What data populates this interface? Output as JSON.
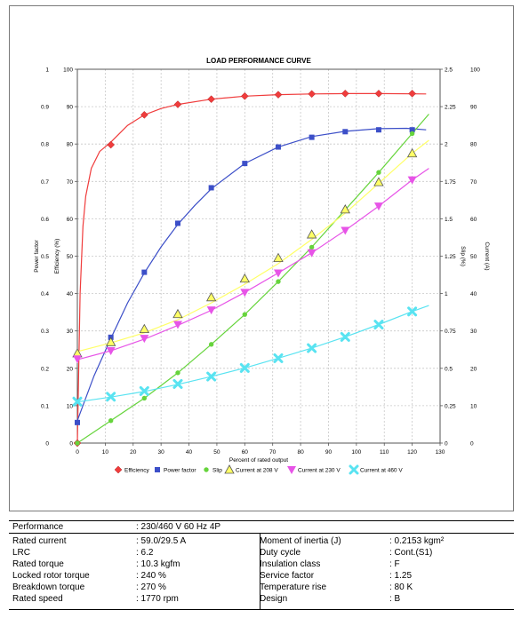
{
  "chart_data": {
    "type": "line",
    "title": "LOAD PERFORMANCE CURVE",
    "xlabel": "Percent of rated output",
    "xlim": [
      0,
      130
    ],
    "x_ticks": [
      "0",
      "10",
      "20",
      "30",
      "40",
      "50",
      "60",
      "70",
      "80",
      "90",
      "100",
      "110",
      "120",
      "130"
    ],
    "axes": {
      "power_factor": {
        "label": "Power factor",
        "range": [
          0,
          1
        ],
        "ticks": [
          "0",
          "0.1",
          "0.2",
          "0.3",
          "0.4",
          "0.5",
          "0.6",
          "0.7",
          "0.8",
          "0.9",
          "1"
        ]
      },
      "efficiency": {
        "label": "Efficiency (%)",
        "range": [
          0,
          100
        ],
        "ticks": [
          "0",
          "10",
          "20",
          "30",
          "40",
          "50",
          "60",
          "70",
          "80",
          "90",
          "100"
        ]
      },
      "slip": {
        "label": "Slip (%)",
        "range": [
          0,
          2.5
        ],
        "ticks": [
          "0",
          "0.25",
          "0.5",
          "0.75",
          "1",
          "1.25",
          "1.5",
          "1.75",
          "2",
          "2.25",
          "2.5"
        ]
      },
      "current": {
        "label": "Current (A)",
        "range": [
          0,
          100
        ],
        "ticks": [
          "0",
          "10",
          "20",
          "30",
          "40",
          "50",
          "60",
          "70",
          "80",
          "90",
          "100"
        ]
      }
    },
    "grid": true,
    "legend_position": "bottom",
    "series": [
      {
        "name": "Efficiency",
        "axis": "efficiency",
        "color": "#f03c3c",
        "marker": "diamond",
        "x": [
          0,
          12,
          24,
          36,
          48,
          60,
          72,
          84,
          96,
          108,
          120
        ],
        "y": [
          0,
          79.8,
          87.8,
          90.6,
          92.0,
          92.8,
          93.2,
          93.4,
          93.5,
          93.5,
          93.5
        ],
        "curve": [
          [
            0,
            0
          ],
          [
            1,
            40
          ],
          [
            2,
            58
          ],
          [
            3,
            66
          ],
          [
            5,
            73.5
          ],
          [
            8,
            78
          ],
          [
            12,
            80.5
          ],
          [
            18,
            85
          ],
          [
            24,
            87.8
          ],
          [
            30,
            89.5
          ],
          [
            36,
            90.6
          ],
          [
            48,
            92
          ],
          [
            60,
            92.8
          ],
          [
            72,
            93.2
          ],
          [
            84,
            93.4
          ],
          [
            96,
            93.5
          ],
          [
            108,
            93.5
          ],
          [
            125,
            93.4
          ]
        ]
      },
      {
        "name": "Power factor",
        "axis": "power_factor",
        "color": "#3c4fc8",
        "marker": "square",
        "x": [
          0,
          12,
          24,
          36,
          48,
          60,
          72,
          84,
          96,
          108,
          120
        ],
        "y": [
          0.055,
          0.283,
          0.457,
          0.588,
          0.683,
          0.748,
          0.792,
          0.818,
          0.833,
          0.838,
          0.838
        ],
        "curve": [
          [
            0,
            0.06
          ],
          [
            6,
            0.18
          ],
          [
            12,
            0.28
          ],
          [
            18,
            0.375
          ],
          [
            24,
            0.455
          ],
          [
            30,
            0.525
          ],
          [
            36,
            0.585
          ],
          [
            42,
            0.635
          ],
          [
            48,
            0.68
          ],
          [
            60,
            0.748
          ],
          [
            72,
            0.792
          ],
          [
            84,
            0.82
          ],
          [
            96,
            0.834
          ],
          [
            108,
            0.841
          ],
          [
            118,
            0.842
          ],
          [
            125,
            0.838
          ]
        ]
      },
      {
        "name": "Slip",
        "axis": "slip",
        "color": "#66d43c",
        "marker": "circle",
        "x": [
          0,
          12,
          24,
          36,
          48,
          60,
          72,
          84,
          96,
          108,
          120
        ],
        "y": [
          0,
          0.15,
          0.3,
          0.47,
          0.66,
          0.86,
          1.08,
          1.31,
          1.56,
          1.81,
          2.07
        ],
        "curve": [
          [
            0,
            0
          ],
          [
            12,
            0.15
          ],
          [
            24,
            0.3
          ],
          [
            36,
            0.47
          ],
          [
            48,
            0.66
          ],
          [
            60,
            0.86
          ],
          [
            72,
            1.08
          ],
          [
            84,
            1.31
          ],
          [
            96,
            1.56
          ],
          [
            108,
            1.81
          ],
          [
            120,
            2.07
          ],
          [
            126,
            2.2
          ]
        ]
      },
      {
        "name": "Current at 208 V",
        "axis": "current",
        "color": "#ffff66",
        "marker": "triangle",
        "x": [
          0,
          12,
          24,
          36,
          48,
          60,
          72,
          84,
          96,
          108,
          120
        ],
        "y": [
          24.0,
          27.0,
          30.5,
          34.5,
          39.0,
          44.0,
          49.5,
          55.8,
          62.5,
          69.8,
          77.5
        ],
        "curve": [
          [
            0,
            24.5
          ],
          [
            12,
            26.8
          ],
          [
            24,
            29.5
          ],
          [
            36,
            33
          ],
          [
            48,
            37.5
          ],
          [
            60,
            42.5
          ],
          [
            72,
            48
          ],
          [
            84,
            54.5
          ],
          [
            96,
            61.5
          ],
          [
            108,
            69.5
          ],
          [
            120,
            77.5
          ],
          [
            126,
            81
          ]
        ]
      },
      {
        "name": "Current at 230 V",
        "axis": "current",
        "color": "#e754e7",
        "marker": "triangle-down",
        "x": [
          0,
          12,
          24,
          36,
          48,
          60,
          72,
          84,
          96,
          108,
          120
        ],
        "y": [
          22.5,
          24.7,
          28.0,
          31.7,
          35.6,
          40.3,
          45.5,
          50.9,
          56.9,
          63.4,
          70.4
        ],
        "curve": [
          [
            0,
            22.3
          ],
          [
            12,
            24.7
          ],
          [
            24,
            27.8
          ],
          [
            36,
            31.5
          ],
          [
            48,
            35.5
          ],
          [
            60,
            40.3
          ],
          [
            72,
            45.5
          ],
          [
            84,
            50.9
          ],
          [
            96,
            56.9
          ],
          [
            108,
            63.4
          ],
          [
            120,
            70.4
          ],
          [
            126,
            73.5
          ]
        ]
      },
      {
        "name": "Current at 460 V",
        "axis": "current",
        "color": "#59e3f1",
        "marker": "x",
        "x": [
          0,
          12,
          24,
          36,
          48,
          60,
          72,
          84,
          96,
          108,
          120
        ],
        "y": [
          11.1,
          12.4,
          13.9,
          15.8,
          17.8,
          20.1,
          22.7,
          25.4,
          28.4,
          31.7,
          35.2
        ],
        "curve": [
          [
            0,
            11
          ],
          [
            12,
            12.3
          ],
          [
            24,
            13.8
          ],
          [
            36,
            15.7
          ],
          [
            48,
            17.8
          ],
          [
            60,
            20.1
          ],
          [
            72,
            22.7
          ],
          [
            84,
            25.4
          ],
          [
            96,
            28.4
          ],
          [
            108,
            31.7
          ],
          [
            120,
            35.2
          ],
          [
            126,
            36.8
          ]
        ]
      }
    ]
  },
  "performance": {
    "label": "Performance",
    "value": ": 230/460 V 60 Hz 4P"
  },
  "specs_left": [
    {
      "label": "Rated current",
      "value": ": 59.0/29.5 A"
    },
    {
      "label": "LRC",
      "value": ": 6.2"
    },
    {
      "label": "Rated torque",
      "value": ": 10.3 kgfm"
    },
    {
      "label": "Locked rotor torque",
      "value": ": 240 %"
    },
    {
      "label": "Breakdown torque",
      "value": ": 270 %"
    },
    {
      "label": "Rated speed",
      "value": ": 1770 rpm"
    }
  ],
  "specs_right": [
    {
      "label": "Moment of inertia (J)",
      "value": ": 0.2153 kgm²"
    },
    {
      "label": "Duty cycle",
      "value": ": Cont.(S1)"
    },
    {
      "label": "Insulation class",
      "value": ": F"
    },
    {
      "label": "Service factor",
      "value": ": 1.25"
    },
    {
      "label": "Temperature rise",
      "value": ": 80 K"
    },
    {
      "label": "Design",
      "value": ": B"
    }
  ]
}
